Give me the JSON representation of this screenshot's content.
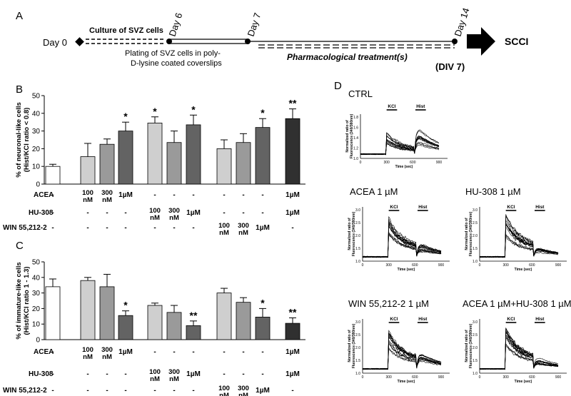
{
  "panel_labels": {
    "a": "A",
    "b": "B",
    "c": "C",
    "d": "D"
  },
  "timeline": {
    "day0": "Day 0",
    "day6": "Day 6",
    "day7": "Day 7",
    "day14": "Day 14",
    "culture": "Culture of SVZ cells",
    "plating_line1": "Plating of SVZ cells in poly-",
    "plating_line2": "D-lysine coated coverslips",
    "treatment": "Pharmacological treatment(s)",
    "div": "(DIV 7)",
    "scci": "SCCI"
  },
  "conditions": {
    "row_labels": [
      "ACEA",
      "HU-308",
      "WIN 55,212-2"
    ],
    "cells": [
      [
        "-",
        "100 nM",
        "300 nM",
        "1µM",
        "-",
        "-",
        "-",
        "-",
        "-",
        "-",
        "1µM"
      ],
      [
        "-",
        "-",
        "-",
        "-",
        "100 nM",
        "300 nM",
        "1µM",
        "-",
        "-",
        "-",
        "1µM"
      ],
      [
        "-",
        "-",
        "-",
        "-",
        "-",
        "-",
        "-",
        "100 nM",
        "300 nM",
        "1µM",
        "-"
      ]
    ]
  },
  "chart_data": [
    {
      "type": "bar",
      "panel": "B",
      "ylabel": "% of neuronal-like cells",
      "ylabel2": "(Hist/KCl ratio < 0.8)",
      "ylim": [
        0,
        50
      ],
      "yticks": [
        "0",
        "10",
        "20",
        "30",
        "40",
        "50"
      ],
      "values": [
        10,
        15.5,
        22.5,
        30,
        34.5,
        23.5,
        33.5,
        20,
        23.5,
        32,
        37
      ],
      "errors": [
        1.2,
        7.5,
        3,
        5,
        3.5,
        6.5,
        5.5,
        5,
        5,
        5,
        5.5
      ],
      "significance": [
        "",
        "",
        "",
        "*",
        "*",
        "",
        "*",
        "",
        "",
        "*",
        "**"
      ],
      "colors": [
        "#ffffff",
        "#cfcfcf",
        "#9a9a9a",
        "#636363",
        "#cfcfcf",
        "#9a9a9a",
        "#636363",
        "#cfcfcf",
        "#9a9a9a",
        "#636363",
        "#303030"
      ]
    },
    {
      "type": "bar",
      "panel": "C",
      "ylabel": "% of immature-like cells",
      "ylabel2": "(Hist/KCl ratio 1 - 1.3)",
      "ylim": [
        0,
        50
      ],
      "yticks": [
        "0",
        "10",
        "20",
        "30",
        "40",
        "50"
      ],
      "values": [
        34,
        38,
        34,
        15.5,
        22,
        17.5,
        9,
        30,
        24,
        14.5,
        10.5
      ],
      "errors": [
        5,
        2,
        8,
        3,
        1.5,
        4.5,
        3,
        3,
        3,
        5.5,
        3.5
      ],
      "significance": [
        "",
        "",
        "",
        "*",
        "",
        "",
        "**",
        "",
        "",
        "*",
        "**"
      ],
      "colors": [
        "#ffffff",
        "#cfcfcf",
        "#9a9a9a",
        "#636363",
        "#cfcfcf",
        "#9a9a9a",
        "#636363",
        "#cfcfcf",
        "#9a9a9a",
        "#636363",
        "#303030"
      ]
    },
    {
      "type": "line",
      "panel": "D",
      "plots": [
        {
          "title": "CTRL",
          "amp": 0.9,
          "hamp": 1.7
        },
        {
          "title": "ACEA 1 µM",
          "amp": 1.5,
          "hamp": 0.7
        },
        {
          "title": "HU-308 1 µM",
          "amp": 1.6,
          "hamp": 0.5
        },
        {
          "title": "WIN 55,212-2 1 µM",
          "amp": 1.6,
          "hamp": 0.9
        },
        {
          "title": "ACEA 1 µM+HU-308 1 µM",
          "amp": 1.7,
          "hamp": 0.7
        }
      ],
      "ylabel": "Normalized ratio of",
      "ylabel2": "Fluorescence (340/380nm)",
      "xlabel": "Time (sec)",
      "xticks": [
        "0",
        "300",
        "600",
        "900"
      ],
      "yticks_ctrl": [
        "1.0",
        "1.2",
        "1.4",
        "1.6",
        "1.8"
      ],
      "yticks": [
        "1.0",
        "1.5",
        "2.0",
        "2.5",
        "3.0"
      ],
      "kcl_label": "KCl",
      "hist_label": "Hist"
    }
  ]
}
